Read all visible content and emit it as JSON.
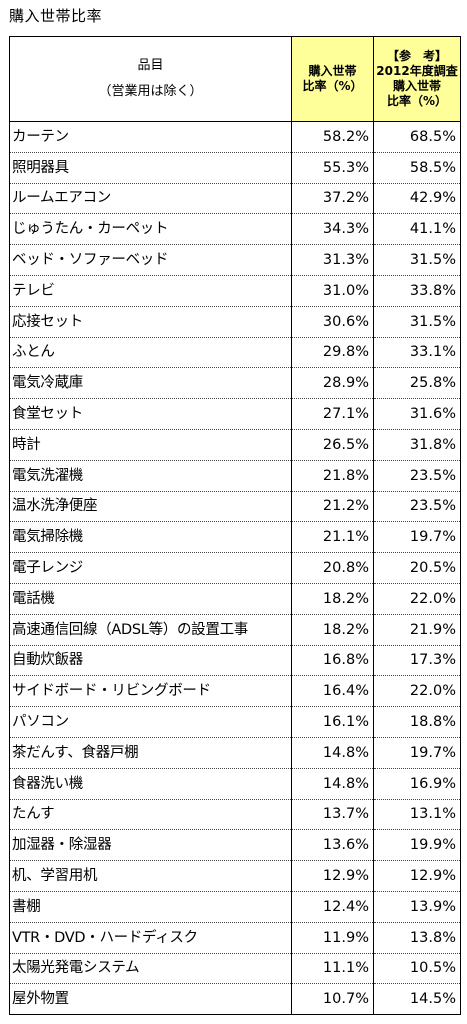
{
  "title": "購入世帯比率",
  "table": {
    "header": {
      "item": "品目",
      "item_note": "（営業用は除く）",
      "col2_line1": "購入世帯",
      "col2_line2": "比率（%）",
      "col3_line1": "【参　考】",
      "col3_line2": "2012年度調査",
      "col3_line3": "購入世帯",
      "col3_line4": "比率（%）"
    },
    "rows": [
      {
        "name": "カーテン",
        "rate": "58.2%",
        "ref": "68.5%"
      },
      {
        "name": "照明器具",
        "rate": "55.3%",
        "ref": "58.5%"
      },
      {
        "name": "ルームエアコン",
        "rate": "37.2%",
        "ref": "42.9%"
      },
      {
        "name": "じゅうたん・カーペット",
        "rate": "34.3%",
        "ref": "41.1%"
      },
      {
        "name": "ベッド・ソファーベッド",
        "rate": "31.3%",
        "ref": "31.5%"
      },
      {
        "name": "テレビ",
        "rate": "31.0%",
        "ref": "33.8%"
      },
      {
        "name": "応接セット",
        "rate": "30.6%",
        "ref": "31.5%"
      },
      {
        "name": "ふとん",
        "rate": "29.8%",
        "ref": "33.1%"
      },
      {
        "name": "電気冷蔵庫",
        "rate": "28.9%",
        "ref": "25.8%"
      },
      {
        "name": "食堂セット",
        "rate": "27.1%",
        "ref": "31.6%"
      },
      {
        "name": "時計",
        "rate": "26.5%",
        "ref": "31.8%"
      },
      {
        "name": "電気洗濯機",
        "rate": "21.8%",
        "ref": "23.5%"
      },
      {
        "name": "温水洗浄便座",
        "rate": "21.2%",
        "ref": "23.5%"
      },
      {
        "name": "電気掃除機",
        "rate": "21.1%",
        "ref": "19.7%"
      },
      {
        "name": "電子レンジ",
        "rate": "20.8%",
        "ref": "20.5%"
      },
      {
        "name": "電話機",
        "rate": "18.2%",
        "ref": "22.0%"
      },
      {
        "name": "高速通信回線（ADSL等）の設置工事",
        "rate": "18.2%",
        "ref": "21.9%"
      },
      {
        "name": "自動炊飯器",
        "rate": "16.8%",
        "ref": "17.3%"
      },
      {
        "name": "サイドボード・リビングボード",
        "rate": "16.4%",
        "ref": "22.0%"
      },
      {
        "name": "パソコン",
        "rate": "16.1%",
        "ref": "18.8%"
      },
      {
        "name": "茶だんす、食器戸棚",
        "rate": "14.8%",
        "ref": "19.7%"
      },
      {
        "name": "食器洗い機",
        "rate": "14.8%",
        "ref": "16.9%"
      },
      {
        "name": "たんす",
        "rate": "13.7%",
        "ref": "13.1%"
      },
      {
        "name": "加湿器・除湿器",
        "rate": "13.6%",
        "ref": "19.9%"
      },
      {
        "name": "机、学習用机",
        "rate": "12.9%",
        "ref": "12.9%"
      },
      {
        "name": "書棚",
        "rate": "12.4%",
        "ref": "13.9%"
      },
      {
        "name": "VTR・DVD・ハードディスク",
        "rate": "11.9%",
        "ref": "13.8%"
      },
      {
        "name": "太陽光発電システム",
        "rate": "11.1%",
        "ref": "10.5%"
      },
      {
        "name": "屋外物置",
        "rate": "10.7%",
        "ref": "14.5%"
      }
    ]
  },
  "colors": {
    "header_highlight": "#ffff99",
    "border": "#000000"
  }
}
